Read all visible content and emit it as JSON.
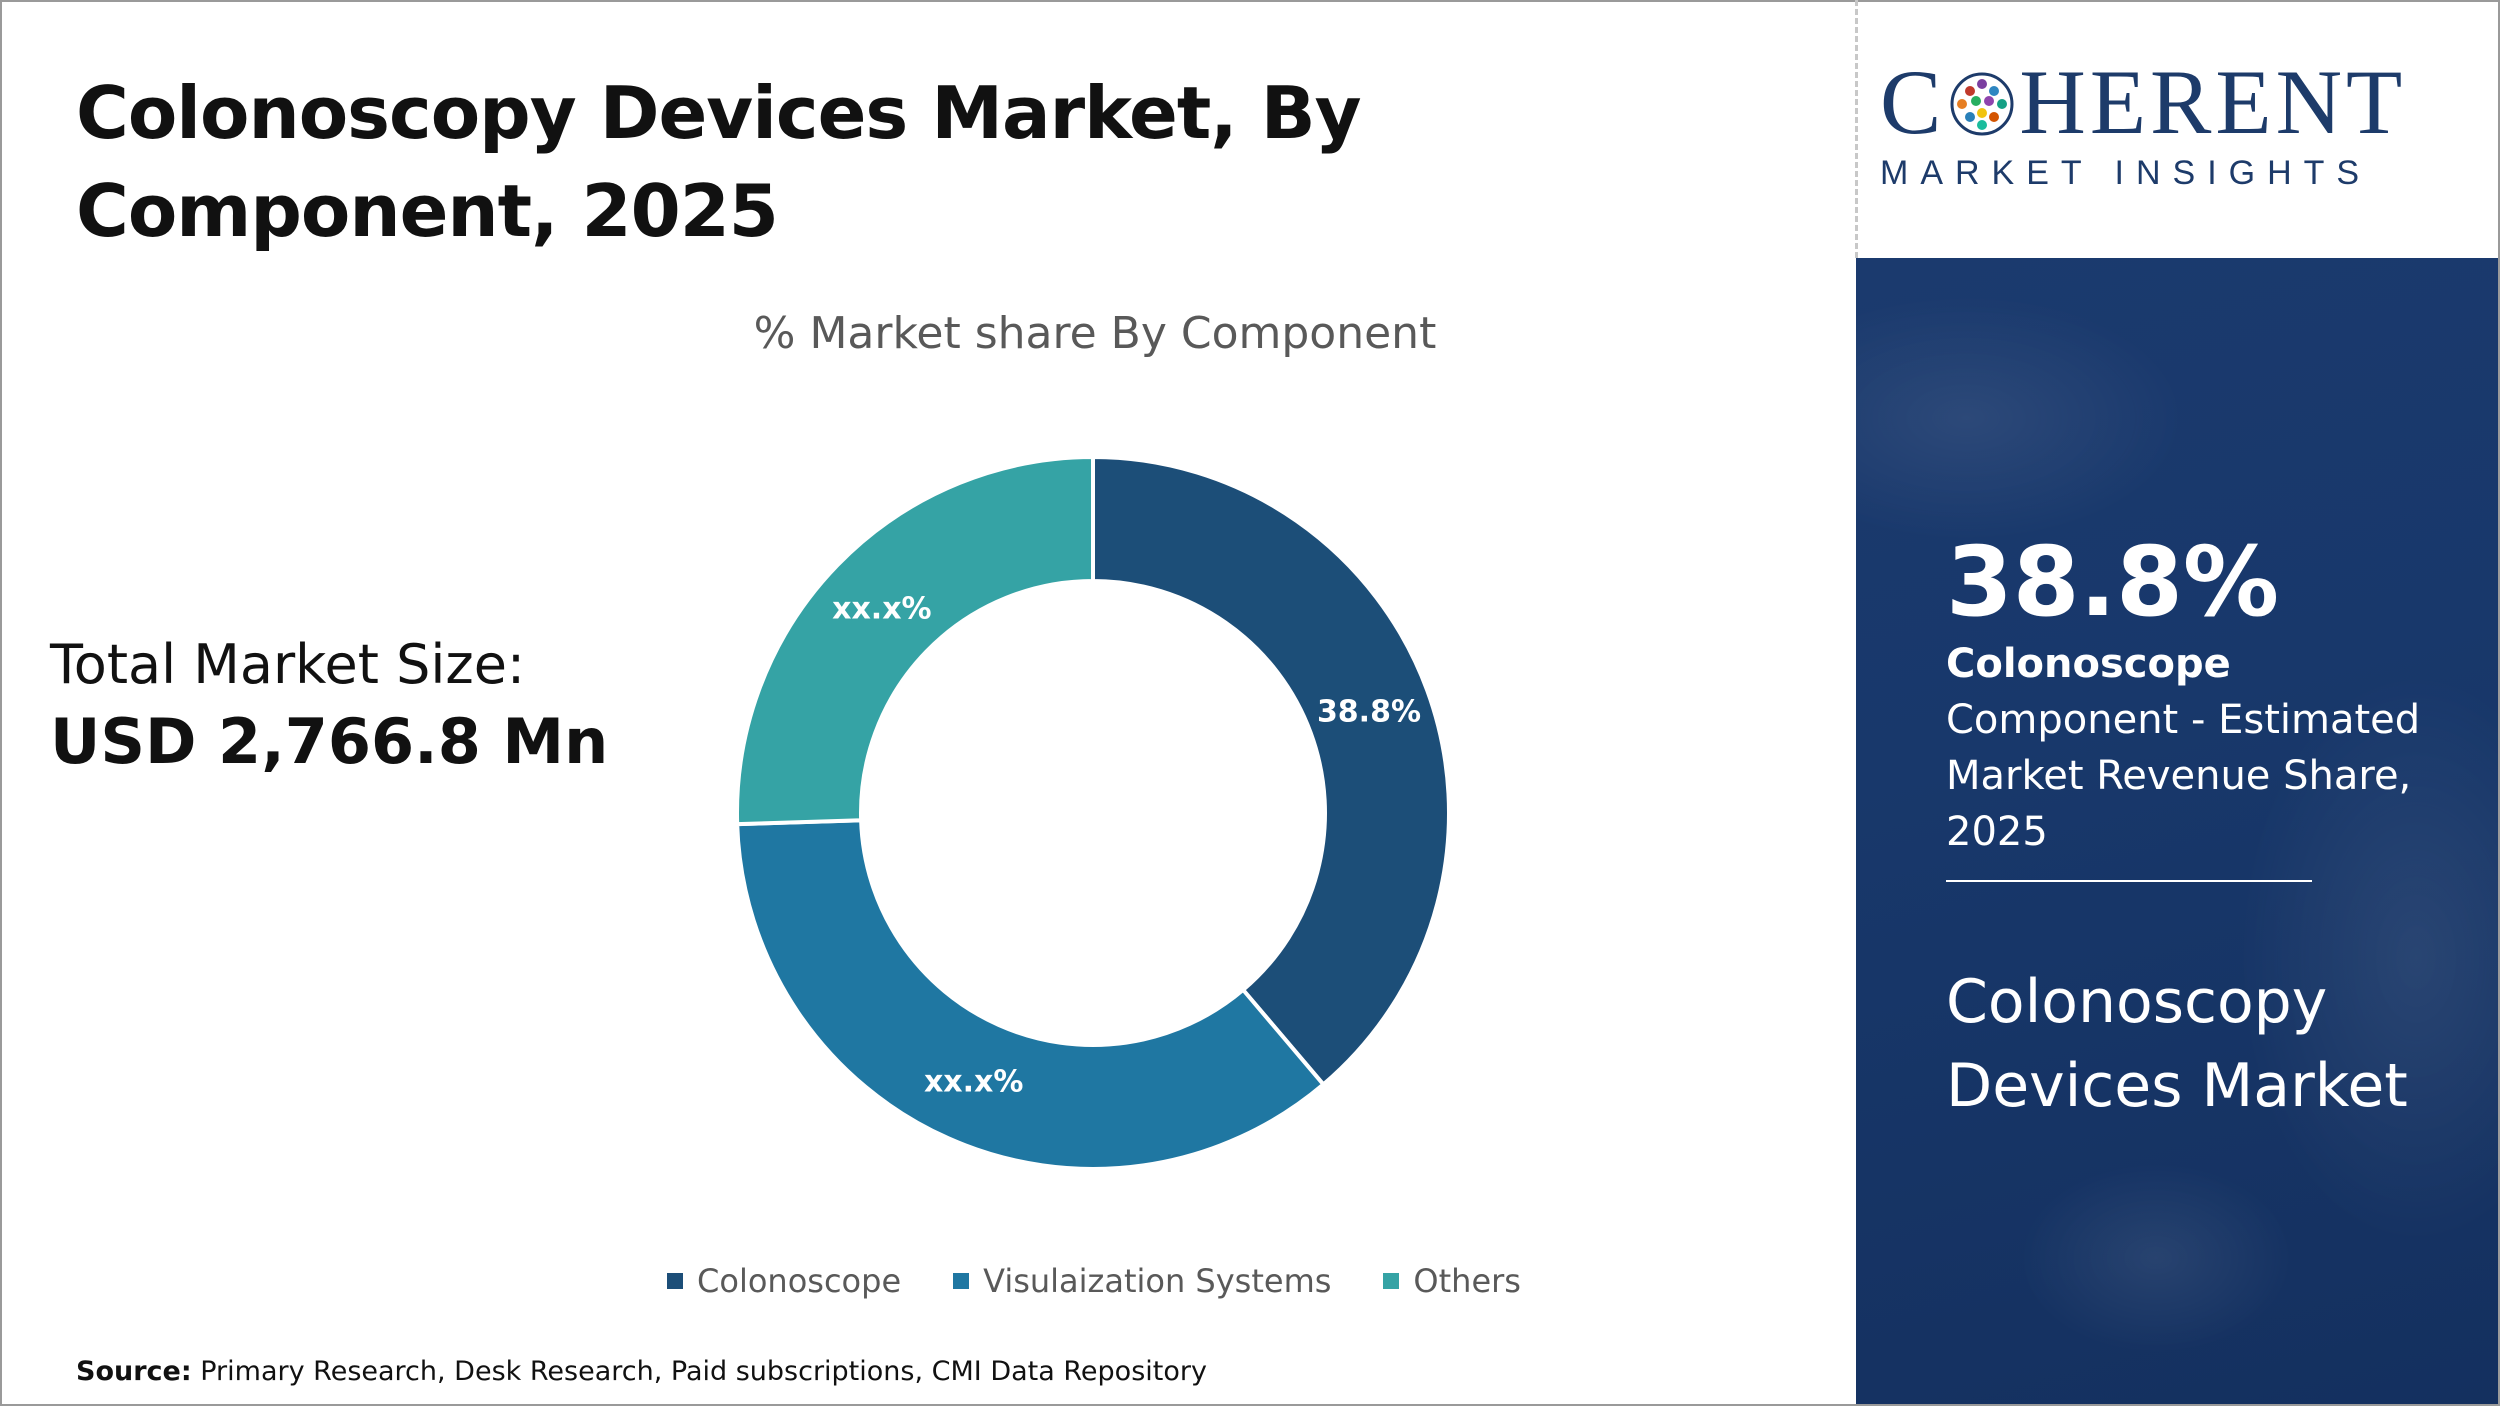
{
  "title": "Colonoscopy Devices Market, By Component, 2025",
  "total_market": {
    "label": "Total Market Size:",
    "value": "USD 2,766.8 Mn"
  },
  "source": {
    "label": "Source:",
    "text": "Primary Research, Desk Research, Paid subscriptions, CMI Data Repository"
  },
  "logo": {
    "brand_before": "C",
    "brand_after": "HERENT",
    "subtitle": "MARKET INSIGHTS"
  },
  "highlight": {
    "value": "38.8%",
    "desc_bold": "Colonoscope",
    "desc_rest": " Component - Estimated Market Revenue Share, 2025",
    "market_name": "Colonoscopy Devices Market"
  },
  "colors": {
    "panel": "#1b3a6e",
    "logo": "#1d3b6a"
  },
  "chart_data": {
    "type": "pie",
    "title": "% Market share By Component",
    "donut": true,
    "legend_position": "bottom",
    "categories": [
      "Colonoscope",
      "Visulaization Systems",
      "Others"
    ],
    "values": [
      38.8,
      35.7,
      25.5
    ],
    "labels": [
      "38.8%",
      "xx.x%",
      "xx.x%"
    ],
    "colors": [
      "#1c4e78",
      "#1f77a2",
      "#35a3a5"
    ]
  }
}
